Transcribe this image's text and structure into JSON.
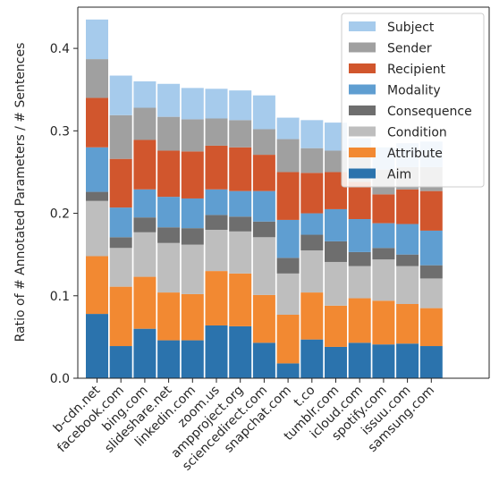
{
  "chart_data": {
    "type": "bar",
    "stacked": true,
    "ylabel": "Ratio of # Annotated Parameters / # Sentences",
    "xlabel": "",
    "ylim": [
      0,
      0.45
    ],
    "yticks": [
      0.0,
      0.1,
      0.2,
      0.3,
      0.4
    ],
    "ytick_labels": [
      "0.0",
      "0.1",
      "0.2",
      "0.3",
      "0.4"
    ],
    "legend_position": "top-right",
    "categories": [
      "b-cdn.net",
      "facebook.com",
      "bing.com",
      "slideshare.net",
      "linkedin.com",
      "zoom.us",
      "ampproject.org",
      "sciencedirect.com",
      "snapchat.com",
      "t.co",
      "tumblr.com",
      "icloud.com",
      "spotify.com",
      "issuu.com",
      "samsung.com"
    ],
    "series": [
      {
        "name": "Aim",
        "color": "#2b73ad",
        "values": [
          0.078,
          0.039,
          0.06,
          0.046,
          0.046,
          0.064,
          0.063,
          0.043,
          0.018,
          0.047,
          0.038,
          0.043,
          0.041,
          0.042,
          0.039
        ]
      },
      {
        "name": "Attribute",
        "color": "#f28932",
        "values": [
          0.07,
          0.072,
          0.063,
          0.058,
          0.056,
          0.066,
          0.064,
          0.058,
          0.059,
          0.057,
          0.05,
          0.054,
          0.053,
          0.048,
          0.046
        ]
      },
      {
        "name": "Condition",
        "color": "#bebebe",
        "values": [
          0.067,
          0.047,
          0.054,
          0.06,
          0.06,
          0.05,
          0.051,
          0.07,
          0.05,
          0.051,
          0.053,
          0.039,
          0.05,
          0.046,
          0.036
        ]
      },
      {
        "name": "Consequence",
        "color": "#6e6e6e",
        "values": [
          0.011,
          0.013,
          0.018,
          0.019,
          0.02,
          0.018,
          0.018,
          0.019,
          0.019,
          0.019,
          0.025,
          0.017,
          0.014,
          0.014,
          0.016
        ]
      },
      {
        "name": "Modality",
        "color": "#5f9ed1",
        "values": [
          0.054,
          0.036,
          0.034,
          0.037,
          0.036,
          0.031,
          0.031,
          0.037,
          0.046,
          0.026,
          0.039,
          0.04,
          0.03,
          0.037,
          0.042
        ]
      },
      {
        "name": "Recipient",
        "color": "#d1562d",
        "values": [
          0.06,
          0.059,
          0.06,
          0.056,
          0.057,
          0.053,
          0.053,
          0.044,
          0.058,
          0.049,
          0.045,
          0.045,
          0.035,
          0.042,
          0.048
        ]
      },
      {
        "name": "Sender",
        "color": "#a0a0a0",
        "values": [
          0.047,
          0.053,
          0.039,
          0.041,
          0.039,
          0.033,
          0.033,
          0.031,
          0.04,
          0.03,
          0.026,
          0.03,
          0.03,
          0.027,
          0.029
        ]
      },
      {
        "name": "Subject",
        "color": "#a6cbec",
        "values": [
          0.048,
          0.048,
          0.032,
          0.04,
          0.038,
          0.036,
          0.036,
          0.041,
          0.026,
          0.034,
          0.034,
          0.023,
          0.027,
          0.029,
          0.031
        ]
      }
    ],
    "legend_order": [
      "Subject",
      "Sender",
      "Recipient",
      "Modality",
      "Consequence",
      "Condition",
      "Attribute",
      "Aim"
    ]
  }
}
